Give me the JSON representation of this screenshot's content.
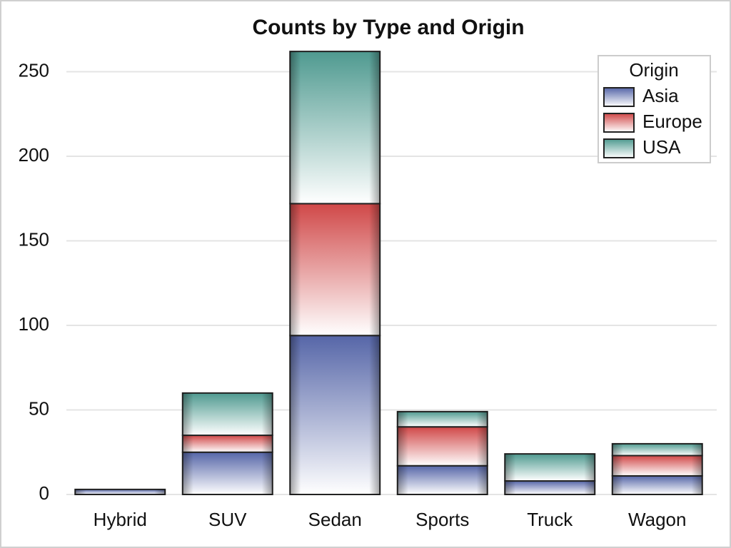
{
  "chart_data": {
    "type": "stacked-bar",
    "title": "Counts by Type and Origin",
    "categories": [
      "Hybrid",
      "SUV",
      "Sedan",
      "Sports",
      "Truck",
      "Wagon"
    ],
    "legend_title": "Origin",
    "legend_position": "top-right",
    "series": [
      {
        "name": "Asia",
        "color": "#5666a8",
        "values": [
          3,
          25,
          94,
          17,
          8,
          11
        ]
      },
      {
        "name": "Europe",
        "color": "#d04848",
        "values": [
          0,
          10,
          78,
          23,
          0,
          12
        ]
      },
      {
        "name": "USA",
        "color": "#4f9a90",
        "values": [
          0,
          25,
          90,
          9,
          16,
          7
        ]
      }
    ],
    "ylim": [
      0,
      265
    ],
    "yticks": [
      0,
      50,
      100,
      150,
      200,
      250
    ],
    "grid": true
  }
}
